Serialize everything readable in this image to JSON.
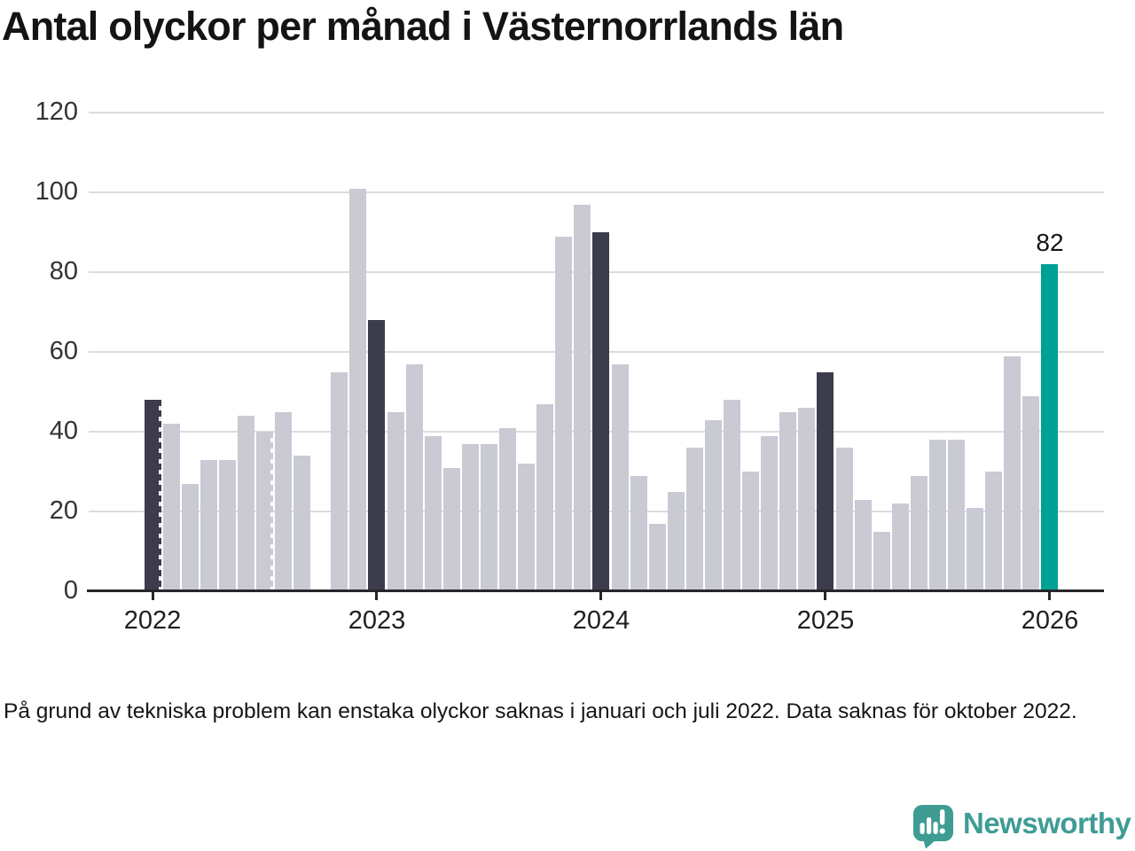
{
  "title": "Antal olyckor per månad i Västernorrlands län",
  "footnote": "På grund av tekniska problem kan enstaka olyckor saknas i januari och juli 2022. Data saknas för oktober 2022.",
  "logo": {
    "text": "Newsworthy",
    "icon": "newsworthy-speech-bubble-bar-chart-icon"
  },
  "colors": {
    "bar_default": "#c9cad3",
    "bar_january": "#3c3c4c",
    "bar_latest": "#00a195",
    "grid": "#dcdcdf",
    "axis": "#26262b",
    "logo": "#3e9c93"
  },
  "chart_data": {
    "type": "bar",
    "title": "Antal olyckor per månad i Västernorrlands län",
    "xlabel": "",
    "ylabel": "",
    "ylim": [
      0,
      120
    ],
    "yticks": [
      0,
      20,
      40,
      60,
      80,
      100,
      120
    ],
    "xtick_labels": [
      "2022",
      "2023",
      "2024",
      "2025",
      "2026"
    ],
    "grid": true,
    "legend": false,
    "years": [
      {
        "year": "2022",
        "values": [
          48,
          42,
          27,
          33,
          33,
          44,
          40,
          45,
          34,
          null,
          55,
          101
        ]
      },
      {
        "year": "2023",
        "values": [
          68,
          45,
          57,
          39,
          31,
          37,
          37,
          41,
          32,
          47,
          89,
          97
        ]
      },
      {
        "year": "2024",
        "values": [
          90,
          57,
          29,
          17,
          25,
          36,
          43,
          48,
          30,
          39,
          45,
          46
        ]
      },
      {
        "year": "2025",
        "values": [
          55,
          36,
          23,
          15,
          22,
          29,
          38,
          38,
          21,
          30,
          59,
          49
        ]
      },
      {
        "year": "2026",
        "values": [
          82
        ]
      }
    ],
    "missing_months": [
      "2022-10"
    ],
    "hatched_months": [
      "2022-01",
      "2022-07"
    ],
    "highlighted_january_months": [
      "2022-01",
      "2023-01",
      "2024-01",
      "2025-01"
    ],
    "latest_month": "2026-01",
    "latest_value": 82,
    "latest_value_label": "82"
  }
}
